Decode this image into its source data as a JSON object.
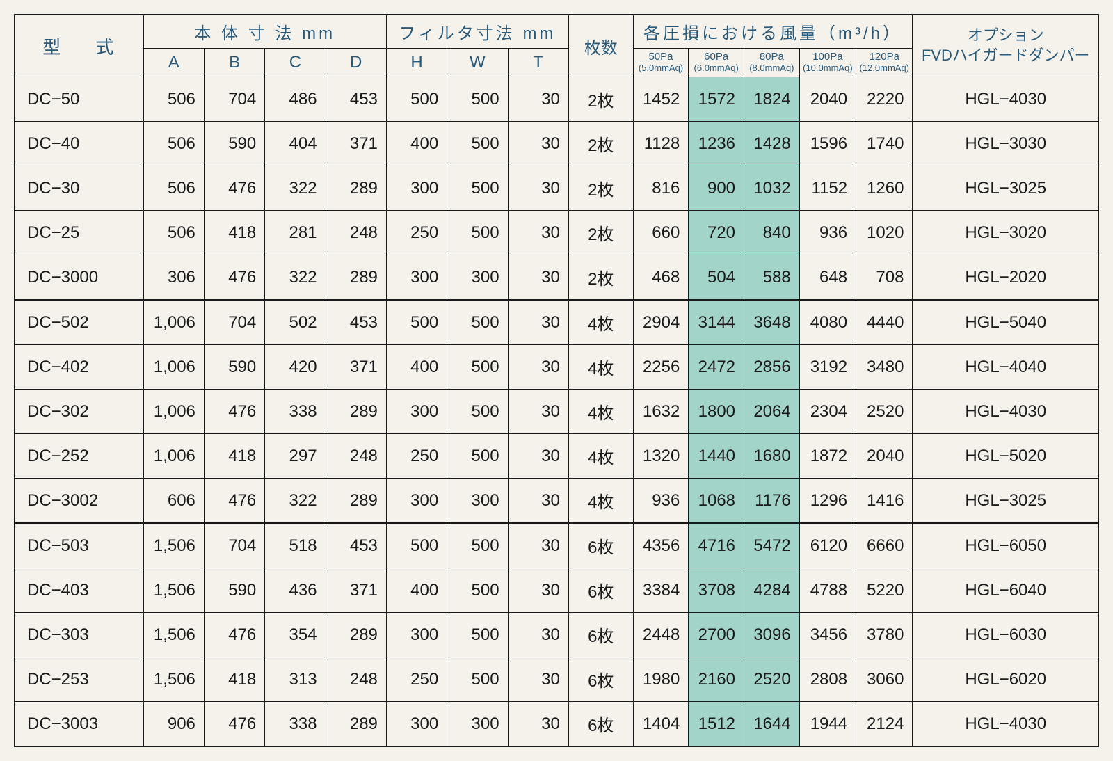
{
  "headers": {
    "model": "型　式",
    "body_dims": "本 体 寸 法 mm",
    "filter_dims": "フィルタ寸法 mm",
    "qty": "枚数",
    "airflow": "各圧損における風量（m³/h）",
    "option_line1": "オプション",
    "option_line2": "FVDハイガードダンパー",
    "A": "A",
    "B": "B",
    "C": "C",
    "D": "D",
    "H": "H",
    "W": "W",
    "T": "T",
    "pa": [
      {
        "top": "50Pa",
        "sub": "(5.0mmAq)"
      },
      {
        "top": "60Pa",
        "sub": "(6.0mmAq)"
      },
      {
        "top": "80Pa",
        "sub": "(8.0mmAq)"
      },
      {
        "top": "100Pa",
        "sub": "(10.0mmAq)"
      },
      {
        "top": "120Pa",
        "sub": "(12.0mmAq)"
      }
    ]
  },
  "highlight_columns": [
    1,
    2
  ],
  "group_end_indices": [
    4,
    9,
    14
  ],
  "rows": [
    {
      "model": "DC−50",
      "A": "506",
      "B": "704",
      "C": "486",
      "D": "453",
      "H": "500",
      "W": "500",
      "T": "30",
      "qty": "2枚",
      "pa": [
        "1452",
        "1572",
        "1824",
        "2040",
        "2220"
      ],
      "option": "HGL−4030"
    },
    {
      "model": "DC−40",
      "A": "506",
      "B": "590",
      "C": "404",
      "D": "371",
      "H": "400",
      "W": "500",
      "T": "30",
      "qty": "2枚",
      "pa": [
        "1128",
        "1236",
        "1428",
        "1596",
        "1740"
      ],
      "option": "HGL−3030"
    },
    {
      "model": "DC−30",
      "A": "506",
      "B": "476",
      "C": "322",
      "D": "289",
      "H": "300",
      "W": "500",
      "T": "30",
      "qty": "2枚",
      "pa": [
        "816",
        "900",
        "1032",
        "1152",
        "1260"
      ],
      "option": "HGL−3025"
    },
    {
      "model": "DC−25",
      "A": "506",
      "B": "418",
      "C": "281",
      "D": "248",
      "H": "250",
      "W": "500",
      "T": "30",
      "qty": "2枚",
      "pa": [
        "660",
        "720",
        "840",
        "936",
        "1020"
      ],
      "option": "HGL−3020"
    },
    {
      "model": "DC−3000",
      "A": "306",
      "B": "476",
      "C": "322",
      "D": "289",
      "H": "300",
      "W": "300",
      "T": "30",
      "qty": "2枚",
      "pa": [
        "468",
        "504",
        "588",
        "648",
        "708"
      ],
      "option": "HGL−2020"
    },
    {
      "model": "DC−502",
      "A": "1,006",
      "B": "704",
      "C": "502",
      "D": "453",
      "H": "500",
      "W": "500",
      "T": "30",
      "qty": "4枚",
      "pa": [
        "2904",
        "3144",
        "3648",
        "4080",
        "4440"
      ],
      "option": "HGL−5040"
    },
    {
      "model": "DC−402",
      "A": "1,006",
      "B": "590",
      "C": "420",
      "D": "371",
      "H": "400",
      "W": "500",
      "T": "30",
      "qty": "4枚",
      "pa": [
        "2256",
        "2472",
        "2856",
        "3192",
        "3480"
      ],
      "option": "HGL−4040"
    },
    {
      "model": "DC−302",
      "A": "1,006",
      "B": "476",
      "C": "338",
      "D": "289",
      "H": "300",
      "W": "500",
      "T": "30",
      "qty": "4枚",
      "pa": [
        "1632",
        "1800",
        "2064",
        "2304",
        "2520"
      ],
      "option": "HGL−4030"
    },
    {
      "model": "DC−252",
      "A": "1,006",
      "B": "418",
      "C": "297",
      "D": "248",
      "H": "250",
      "W": "500",
      "T": "30",
      "qty": "4枚",
      "pa": [
        "1320",
        "1440",
        "1680",
        "1872",
        "2040"
      ],
      "option": "HGL−5020"
    },
    {
      "model": "DC−3002",
      "A": "606",
      "B": "476",
      "C": "322",
      "D": "289",
      "H": "300",
      "W": "300",
      "T": "30",
      "qty": "4枚",
      "pa": [
        "936",
        "1068",
        "1176",
        "1296",
        "1416"
      ],
      "option": "HGL−3025"
    },
    {
      "model": "DC−503",
      "A": "1,506",
      "B": "704",
      "C": "518",
      "D": "453",
      "H": "500",
      "W": "500",
      "T": "30",
      "qty": "6枚",
      "pa": [
        "4356",
        "4716",
        "5472",
        "6120",
        "6660"
      ],
      "option": "HGL−6050"
    },
    {
      "model": "DC−403",
      "A": "1,506",
      "B": "590",
      "C": "436",
      "D": "371",
      "H": "400",
      "W": "500",
      "T": "30",
      "qty": "6枚",
      "pa": [
        "3384",
        "3708",
        "4284",
        "4788",
        "5220"
      ],
      "option": "HGL−6040"
    },
    {
      "model": "DC−303",
      "A": "1,506",
      "B": "476",
      "C": "354",
      "D": "289",
      "H": "300",
      "W": "500",
      "T": "30",
      "qty": "6枚",
      "pa": [
        "2448",
        "2700",
        "3096",
        "3456",
        "3780"
      ],
      "option": "HGL−6030"
    },
    {
      "model": "DC−253",
      "A": "1,506",
      "B": "418",
      "C": "313",
      "D": "248",
      "H": "250",
      "W": "500",
      "T": "30",
      "qty": "6枚",
      "pa": [
        "1980",
        "2160",
        "2520",
        "2808",
        "3060"
      ],
      "option": "HGL−6020"
    },
    {
      "model": "DC−3003",
      "A": "906",
      "B": "476",
      "C": "338",
      "D": "289",
      "H": "300",
      "W": "300",
      "T": "30",
      "qty": "6枚",
      "pa": [
        "1404",
        "1512",
        "1644",
        "1944",
        "2124"
      ],
      "option": "HGL−4030"
    }
  ]
}
